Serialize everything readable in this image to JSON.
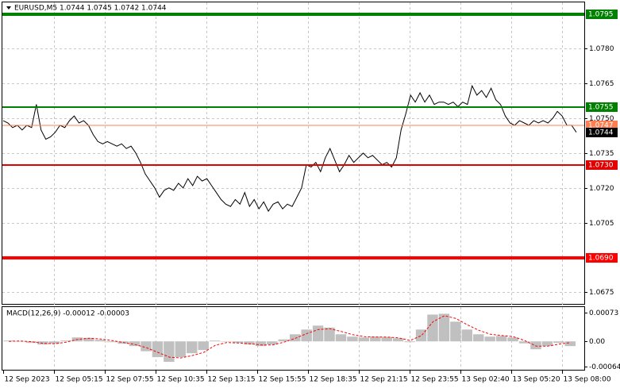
{
  "chart_data": [
    {
      "type": "line",
      "title": "EURUSD,M5  1.0744 1.0745 1.0742 1.0744",
      "xtick_labels": [
        "12 Sep 2023",
        "12 Sep 05:15",
        "12 Sep 07:55",
        "12 Sep 10:35",
        "12 Sep 13:15",
        "12 Sep 15:55",
        "12 Sep 18:35",
        "12 Sep 21:15",
        "12 Sep 23:55",
        "13 Sep 02:40",
        "13 Sep 05:20",
        "13 Sep 08:00"
      ],
      "series": [
        {
          "name": "EURUSD",
          "color": "#000000",
          "values": [
            1.0749,
            1.0748,
            1.0746,
            1.0747,
            1.0745,
            1.0747,
            1.0746,
            1.0756,
            1.0745,
            1.0741,
            1.0742,
            1.0744,
            1.0747,
            1.0746,
            1.0749,
            1.0751,
            1.0748,
            1.0749,
            1.0747,
            1.0743,
            1.074,
            1.0739,
            1.074,
            1.0739,
            1.0738,
            1.0739,
            1.0737,
            1.0738,
            1.0735,
            1.0731,
            1.0726,
            1.0723,
            1.072,
            1.0716,
            1.0719,
            1.072,
            1.0719,
            1.0722,
            1.072,
            1.0724,
            1.0721,
            1.0725,
            1.0723,
            1.0724,
            1.0721,
            1.0718,
            1.0715,
            1.0713,
            1.0712,
            1.0715,
            1.0713,
            1.0718,
            1.0712,
            1.0715,
            1.0711,
            1.0714,
            1.071,
            1.0713,
            1.0714,
            1.0711,
            1.0713,
            1.0712,
            1.0716,
            1.072,
            1.073,
            1.0729,
            1.0731,
            1.0727,
            1.0733,
            1.0737,
            1.0732,
            1.0727,
            1.073,
            1.0734,
            1.0731,
            1.0733,
            1.0735,
            1.0733,
            1.0734,
            1.0732,
            1.073,
            1.0731,
            1.0729,
            1.0733,
            1.0745,
            1.0752,
            1.076,
            1.0757,
            1.0761,
            1.0757,
            1.076,
            1.0756,
            1.0757,
            1.0757,
            1.0756,
            1.0757,
            1.0755,
            1.0757,
            1.0756,
            1.0764,
            1.076,
            1.0762,
            1.0759,
            1.0763,
            1.0758,
            1.0756,
            1.0751,
            1.0748,
            1.0747,
            1.0749,
            1.0748,
            1.0747,
            1.0749,
            1.0748,
            1.0749,
            1.0748,
            1.075,
            1.0753,
            1.0751,
            1.0747,
            1.0747,
            1.0744
          ]
        }
      ],
      "ylim": [
        1.067,
        1.08
      ],
      "yticks": [
        {
          "value": 1.078,
          "label": "1.0780"
        },
        {
          "value": 1.0765,
          "label": "1.0765"
        },
        {
          "value": 1.075,
          "label": "1.0750"
        },
        {
          "value": 1.0735,
          "label": "1.0735"
        },
        {
          "value": 1.072,
          "label": "1.0720"
        },
        {
          "value": 1.0705,
          "label": "1.0705"
        },
        {
          "value": 1.0675,
          "label": "1.0675"
        }
      ],
      "levels": [
        {
          "value": 1.0795,
          "label": "1.0795",
          "color": "#008000",
          "style": "thick"
        },
        {
          "value": 1.0755,
          "label": "1.0755",
          "color": "#008000",
          "style": "thin"
        },
        {
          "value": 1.0747,
          "label": "1.0747",
          "color": "#ff7f50",
          "style": "hair"
        },
        {
          "value": 1.0744,
          "label": "1.0744",
          "color": "#000000",
          "style": "none"
        },
        {
          "value": 1.073,
          "label": "1.0730",
          "color": "#e00000",
          "style": "thin"
        },
        {
          "value": 1.069,
          "label": "1.0690",
          "color": "#ff0000",
          "style": "thick"
        }
      ],
      "grid": true
    },
    {
      "type": "macd",
      "title": "MACD(12,26,9) -0.00012 -0.00003",
      "series": [
        {
          "name": "MACD",
          "color": "#c0c0c0",
          "values": [
            2e-05,
            0.0,
            -4e-05,
            -8e-05,
            -6e-05,
            2e-05,
            0.0001,
            9e-05,
            4e-05,
            -2e-05,
            -6e-05,
            -0.00012,
            -0.00025,
            -0.0004,
            -0.00052,
            -0.0004,
            -0.0003,
            -0.00022,
            2e-05,
            0.0,
            -4e-05,
            -8e-05,
            -0.00012,
            -8e-05,
            5e-05,
            0.00018,
            0.0003,
            0.0004,
            0.00035,
            0.00018,
            0.00012,
            0.0001,
            0.00012,
            0.00011,
            8e-05,
            -2e-05,
            0.0003,
            0.00068,
            0.0007,
            0.0005,
            0.0003,
            0.00018,
            0.00012,
            0.00014,
            0.0001,
            -5e-05,
            -0.0002,
            -0.00012,
            -4e-05,
            -0.00012
          ]
        },
        {
          "name": "Signal",
          "color": "#ff0000",
          "values": [
            0.0,
            1e-05,
            -1e-05,
            -5e-05,
            -6e-05,
            -2e-05,
            5e-05,
            8e-05,
            6e-05,
            2e-05,
            -3e-05,
            -8e-05,
            -0.00016,
            -0.00028,
            -0.0004,
            -0.00042,
            -0.00036,
            -0.00028,
            -0.0001,
            -3e-05,
            -4e-05,
            -6e-05,
            -9e-05,
            -9e-05,
            -2e-05,
            8e-05,
            0.0002,
            0.0003,
            0.00032,
            0.00025,
            0.00017,
            0.00012,
            0.00011,
            0.00011,
            9e-05,
            2e-05,
            0.00015,
            0.0005,
            0.00065,
            0.00058,
            0.00042,
            0.00028,
            0.00018,
            0.00015,
            0.00012,
            2e-05,
            -0.00012,
            -0.00012,
            -7e-05,
            -3e-05
          ]
        }
      ],
      "ylim": [
        -0.00072,
        0.00087
      ],
      "yticks": [
        0.00073,
        {
          "value": 0,
          "label": "0.00"
        },
        -0.00064
      ]
    }
  ]
}
